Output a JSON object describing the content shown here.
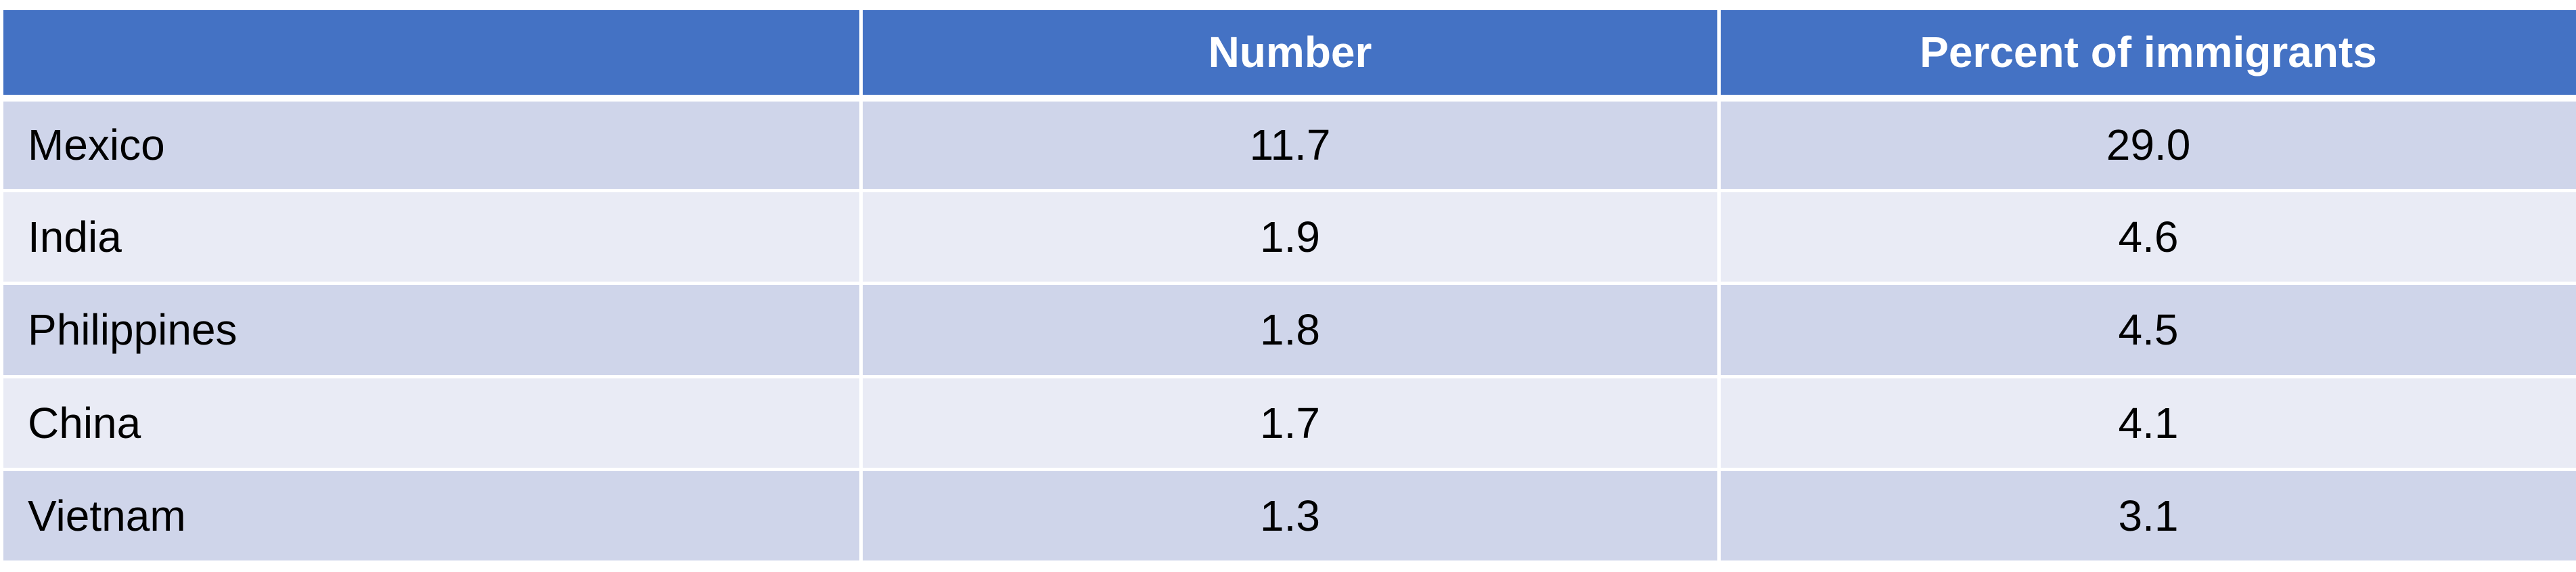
{
  "table": {
    "headers": [
      "",
      "Number",
      "Percent of immigrants"
    ],
    "rows": [
      {
        "country": "Mexico",
        "number": "11.7",
        "percent": "29.0"
      },
      {
        "country": "India",
        "number": "1.9",
        "percent": "4.6"
      },
      {
        "country": "Philippines",
        "number": "1.8",
        "percent": "4.5"
      },
      {
        "country": "China",
        "number": "1.7",
        "percent": "4.1"
      },
      {
        "country": "Vietnam",
        "number": "1.3",
        "percent": "3.1"
      }
    ]
  },
  "colors": {
    "header_bg": "#4472c4",
    "row_odd_bg": "#cfd5ea",
    "row_even_bg": "#e9ebf5"
  }
}
